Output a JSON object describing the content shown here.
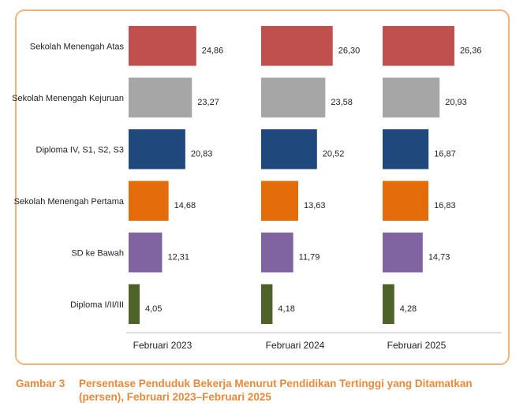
{
  "chart_data": {
    "type": "bar",
    "orientation": "horizontal",
    "categories": [
      "Sekolah Menengah Atas",
      "Sekolah Menengah Kejuruan",
      "Diploma IV, S1, S2, S3",
      "Sekolah Menengah Pertama",
      "SD ke Bawah",
      "Diploma I/II/III"
    ],
    "category_colors": [
      "#c0504d",
      "#a6a6a6",
      "#1f497d",
      "#e46c0a",
      "#8064a2",
      "#4f6228"
    ],
    "panels": [
      {
        "name": "Februari 2023",
        "values": [
          24.86,
          23.27,
          20.83,
          14.68,
          12.31,
          4.05
        ],
        "value_labels": [
          "24,86",
          "23,27",
          "20,83",
          "14,68",
          "12,31",
          "4,05"
        ]
      },
      {
        "name": "Februari 2024",
        "values": [
          26.3,
          23.58,
          20.52,
          13.63,
          11.79,
          4.18
        ],
        "value_labels": [
          "26,30",
          "23,58",
          "20,52",
          "13,63",
          "11,79",
          "4,18"
        ]
      },
      {
        "name": "Februari 2025",
        "values": [
          26.36,
          20.93,
          16.87,
          16.83,
          14.73,
          4.28
        ],
        "value_labels": [
          "26,36",
          "20,93",
          "16,87",
          "16,83",
          "14,73",
          "4,28"
        ]
      }
    ],
    "xlim": [
      0,
      30
    ],
    "grid": false,
    "legend": "none"
  },
  "caption": {
    "label": "Gambar 3",
    "text": "Persentase Penduduk Bekerja Menurut Pendidikan Tertinggi yang Ditamatkan (persen), Februari 2023–Februari 2025"
  }
}
